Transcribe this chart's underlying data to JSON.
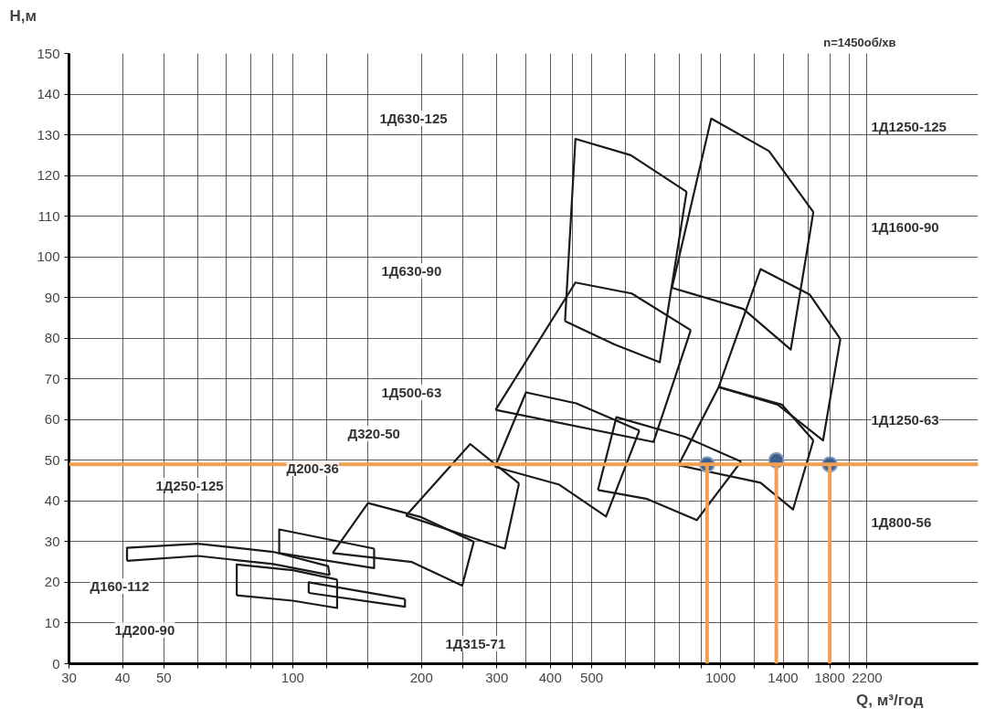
{
  "chart_data": {
    "type": "line",
    "xlabel": "Q, м³/год",
    "ylabel": "H,м",
    "log": "x",
    "grid": true,
    "marker": "none",
    "line_style": "solid",
    "xlim": [
      30,
      4000
    ],
    "ylim": [
      0,
      150
    ],
    "xticks": [
      30,
      40,
      50,
      {
        "value": 60,
        "label": null
      },
      {
        "value": 70,
        "label": null
      },
      {
        "value": 80,
        "label": null
      },
      {
        "value": 90,
        "label": null
      },
      100,
      {
        "value": 120,
        "label": null
      },
      {
        "value": 150,
        "label": null
      },
      200,
      {
        "value": 250,
        "label": null
      },
      300,
      {
        "value": 350,
        "label": null
      },
      400,
      {
        "value": 450,
        "label": null
      },
      500,
      {
        "value": 600,
        "label": null
      },
      {
        "value": 700,
        "label": null
      },
      {
        "value": 800,
        "label": null
      },
      {
        "value": 900,
        "label": null
      },
      1000,
      {
        "value": 1200,
        "label": null
      },
      1400,
      {
        "value": 1600,
        "label": null
      },
      1800,
      {
        "value": 2000,
        "label": null
      },
      2200
    ],
    "yticks": [
      0,
      10,
      20,
      30,
      40,
      50,
      60,
      70,
      80,
      90,
      100,
      110,
      120,
      130,
      140,
      150
    ],
    "series": [
      {
        "color": "#1a1a1a",
        "x": [
          41,
          41,
          60,
          90,
          121,
          122
        ],
        "values": [
          25.3,
          28.5,
          29.5,
          27.5,
          24,
          21.8
        ]
      },
      {
        "color": "#1a1a1a",
        "x": [
          41,
          60,
          90,
          122
        ],
        "values": [
          25.3,
          26.5,
          24.5,
          21.8
        ]
      },
      {
        "color": "#1a1a1a",
        "x": [
          93,
          93,
          155
        ],
        "values": [
          27.2,
          33,
          28.3
        ]
      },
      {
        "color": "#1a1a1a",
        "x": [
          93,
          155,
          155
        ],
        "values": [
          27.2,
          23.5,
          28.3
        ]
      },
      {
        "color": "#1a1a1a",
        "x": [
          74,
          74,
          100,
          127
        ],
        "values": [
          16.8,
          24.4,
          23,
          20.7
        ]
      },
      {
        "color": "#1a1a1a",
        "x": [
          74,
          100,
          127,
          127
        ],
        "values": [
          16.8,
          15.5,
          13.7,
          20.7
        ]
      },
      {
        "color": "#1a1a1a",
        "x": [
          109,
          109,
          183
        ],
        "values": [
          17.4,
          20,
          15.9
        ]
      },
      {
        "color": "#1a1a1a",
        "x": [
          109,
          183,
          183
        ],
        "values": [
          17.4,
          14,
          15.9
        ]
      },
      {
        "color": "#1a1a1a",
        "x": [
          124,
          150,
          200,
          265
        ],
        "values": [
          27.2,
          39.5,
          36,
          30
        ]
      },
      {
        "color": "#1a1a1a",
        "x": [
          124,
          190,
          249,
          265
        ],
        "values": [
          27.2,
          25,
          19.2,
          30
        ]
      },
      {
        "color": "#1a1a1a",
        "x": [
          184,
          260,
          338
        ],
        "values": [
          36.4,
          54,
          44.3
        ]
      },
      {
        "color": "#1a1a1a",
        "x": [
          184,
          313,
          338
        ],
        "values": [
          36.4,
          28.3,
          44.3
        ]
      },
      {
        "color": "#1a1a1a",
        "x": [
          297,
          351,
          460,
          646
        ],
        "values": [
          48.4,
          66.7,
          64,
          57.3
        ]
      },
      {
        "color": "#1a1a1a",
        "x": [
          297,
          420,
          540,
          646
        ],
        "values": [
          48.4,
          44,
          36.2,
          57.3
        ]
      },
      {
        "color": "#1a1a1a",
        "x": [
          298,
          458,
          620,
          852
        ],
        "values": [
          62.4,
          93.7,
          91,
          82
        ]
      },
      {
        "color": "#1a1a1a",
        "x": [
          298,
          697,
          852
        ],
        "values": [
          62.4,
          54.5,
          82
        ]
      },
      {
        "color": "#1a1a1a",
        "x": [
          433,
          458,
          617,
          833
        ],
        "values": [
          84.2,
          129,
          125,
          116
        ]
      },
      {
        "color": "#1a1a1a",
        "x": [
          433,
          565,
          721,
          833
        ],
        "values": [
          84.2,
          78.5,
          74.1,
          116
        ]
      },
      {
        "color": "#1a1a1a",
        "x": [
          770,
          951,
          1298,
          1648
        ],
        "values": [
          92.4,
          134,
          126,
          111
        ]
      },
      {
        "color": "#1a1a1a",
        "x": [
          770,
          1130,
          1459,
          1648
        ],
        "values": [
          92.4,
          87.2,
          77.2,
          111
        ]
      },
      {
        "color": "#1a1a1a",
        "x": [
          990,
          1240,
          1617,
          1906
        ],
        "values": [
          68,
          97,
          90.7,
          79.8
        ]
      },
      {
        "color": "#1a1a1a",
        "x": [
          990,
          1360,
          1736,
          1906
        ],
        "values": [
          68,
          63.7,
          54.9,
          79.8
        ]
      },
      {
        "color": "#1a1a1a",
        "x": [
          797,
          990,
          1390,
          1648
        ],
        "values": [
          48.8,
          68,
          63.7,
          54.9
        ]
      },
      {
        "color": "#1a1a1a",
        "x": [
          797,
          1240,
          1477,
          1648
        ],
        "values": [
          48.8,
          44.5,
          37.9,
          54.9
        ]
      },
      {
        "color": "#1a1a1a",
        "x": [
          517,
          571,
          824,
          1117
        ],
        "values": [
          42.7,
          60.6,
          55.8,
          49.7
        ]
      },
      {
        "color": "#1a1a1a",
        "x": [
          517,
          674,
          880,
          1117
        ],
        "values": [
          42.7,
          40.5,
          35.3,
          49.7
        ]
      },
      {
        "type": "scatter",
        "marker": "circle",
        "color": "#3f5f8f",
        "x": [
          930,
          1350,
          1800
        ],
        "values": [
          49,
          50,
          49
        ]
      }
    ],
    "ref_lines": [
      {
        "axis": "y",
        "value": 49,
        "color": "#f0a050"
      },
      {
        "axis": "x",
        "value": 930,
        "color": "#f0a050"
      },
      {
        "axis": "x",
        "value": 1350,
        "color": "#f0a050"
      },
      {
        "axis": "x",
        "value": 1800,
        "color": "#f0a050"
      }
    ],
    "annotations": [
      "n=1450об/хв",
      "1Д630-125",
      "1Д630-90",
      "1Д500-63",
      "Д320-50",
      "Д200-36",
      "1Д250-125",
      "Д160-112",
      "1Д200-90",
      "1Д315-71",
      "1Д1250-125",
      "1Д1600-90",
      "1Д1250-63",
      "1Д800-56"
    ]
  }
}
